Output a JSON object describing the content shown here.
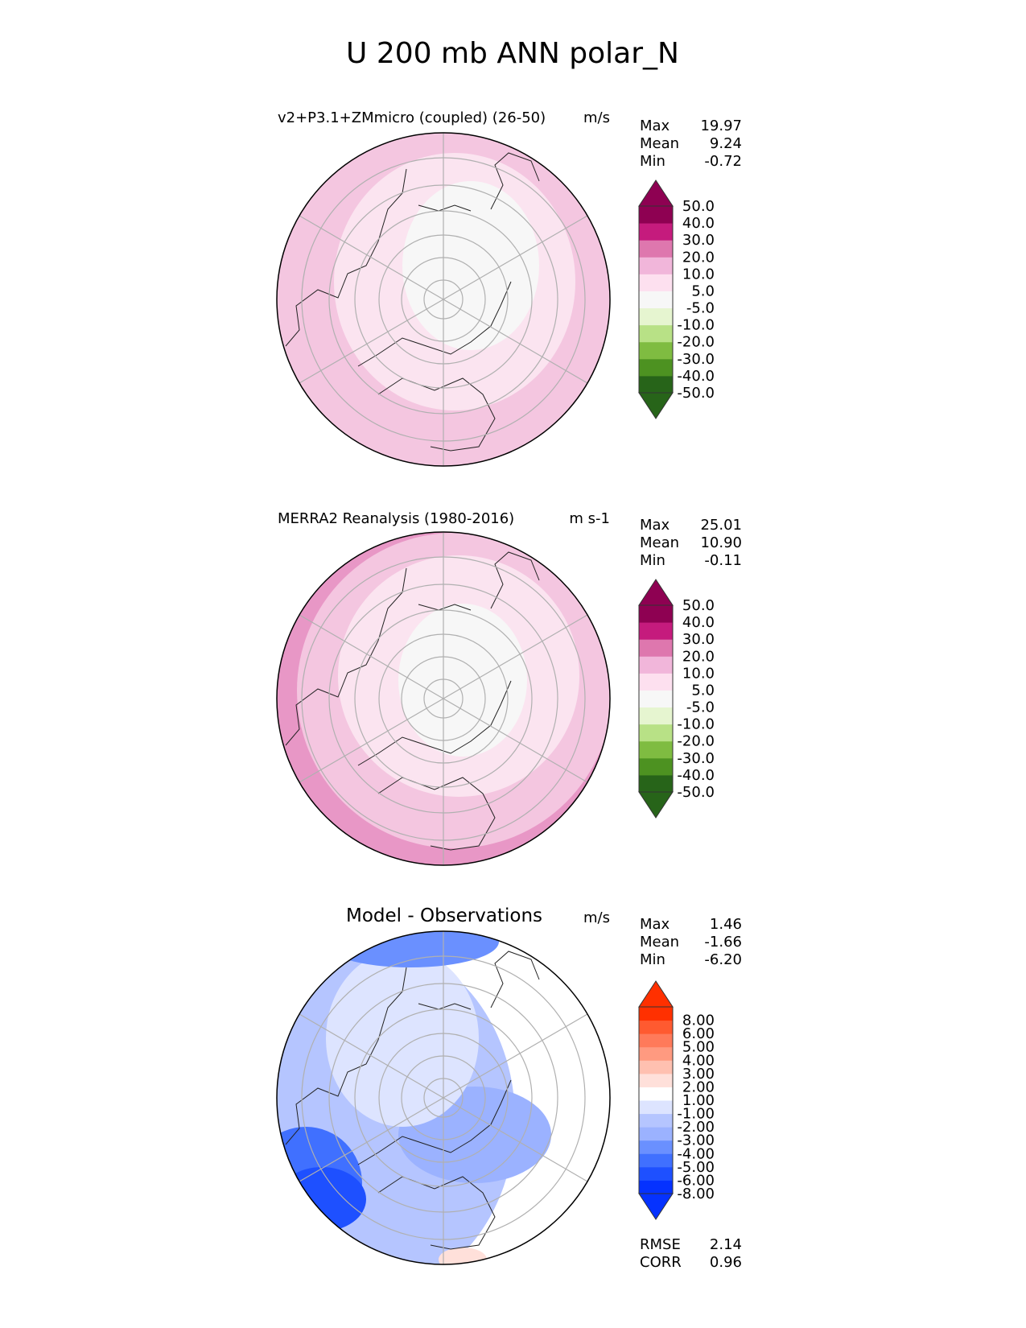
{
  "figure_title": "U 200 mb ANN polar_N",
  "colors": {
    "coastline": "#222222",
    "gridline": "#b0b0b0",
    "frame": "#000000",
    "colorbar_outline": "#333333"
  },
  "colorbars": {
    "pinkgreen": {
      "tick_labels": [
        "-50.0",
        "-40.0",
        "-30.0",
        "-20.0",
        "-10.0",
        "-5.0",
        "5.0",
        "10.0",
        "20.0",
        "30.0",
        "40.0",
        "50.0"
      ],
      "colors_bottom_to_top": [
        "#276419",
        "#4d9221",
        "#7fbc41",
        "#b8e186",
        "#e6f5d0",
        "#f7f7f7",
        "#fde0ef",
        "#f1b6da",
        "#de77ae",
        "#c51b7d",
        "#8e0152"
      ],
      "extend_low": "#276419",
      "extend_high": "#8e0152"
    },
    "bluered": {
      "tick_labels": [
        "-8.00",
        "-6.00",
        "-5.00",
        "-4.00",
        "-3.00",
        "-2.00",
        "-1.00",
        "1.00",
        "2.00",
        "3.00",
        "4.00",
        "5.00",
        "6.00",
        "8.00"
      ],
      "colors_bottom_to_top": [
        "#0532ff",
        "#1e50ff",
        "#4070ff",
        "#6a90ff",
        "#9bb2ff",
        "#b5c5ff",
        "#dde4ff",
        "#ffffff",
        "#ffe0da",
        "#ffc0b0",
        "#ff9a80",
        "#ff7a5a",
        "#ff5a30",
        "#ff3000"
      ],
      "extend_low": "#0532ff",
      "extend_high": "#ff3000"
    }
  },
  "chart_data": [
    {
      "type": "heatmap",
      "projection": "north polar stereographic",
      "title": "v2+P3.1+ZMmicro (coupled) (26-50)",
      "units": "m/s",
      "stats": [
        {
          "label": "Max",
          "value": "19.97"
        },
        {
          "label": "Mean",
          "value": "9.24"
        },
        {
          "label": "Min",
          "value": "-0.72"
        }
      ],
      "colorbar": "pinkgreen",
      "regions_m_s": {
        "pole_interior": 2,
        "mid_latitudes": 8,
        "outer_ring": 15
      }
    },
    {
      "type": "heatmap",
      "projection": "north polar stereographic",
      "title": "MERRA2 Reanalysis (1980-2016)",
      "units": "m s-1",
      "stats": [
        {
          "label": "Max",
          "value": "25.01"
        },
        {
          "label": "Mean",
          "value": "10.90"
        },
        {
          "label": "Min",
          "value": "-0.11"
        }
      ],
      "colorbar": "pinkgreen",
      "regions_m_s": {
        "pole_interior": 3,
        "mid_latitudes": 9,
        "outer_ring": 16,
        "north_atlantic_jet": 23
      }
    },
    {
      "type": "heatmap",
      "projection": "north polar stereographic",
      "title": "Model - Observations",
      "units": "m/s",
      "stats": [
        {
          "label": "Max",
          "value": "1.46"
        },
        {
          "label": "Mean",
          "value": "-1.66"
        },
        {
          "label": "Min",
          "value": "-6.20"
        }
      ],
      "extra_stats": [
        {
          "label": "RMSE",
          "value": "2.14"
        },
        {
          "label": "CORR",
          "value": "0.96"
        }
      ],
      "colorbar": "bluered",
      "regions_m_s": {
        "pacific_half": 0,
        "pole_cap": -1.5,
        "atlantic_band": -3.5,
        "atlantic_edge": -5.5,
        "europe_spot": 1.2
      }
    }
  ]
}
